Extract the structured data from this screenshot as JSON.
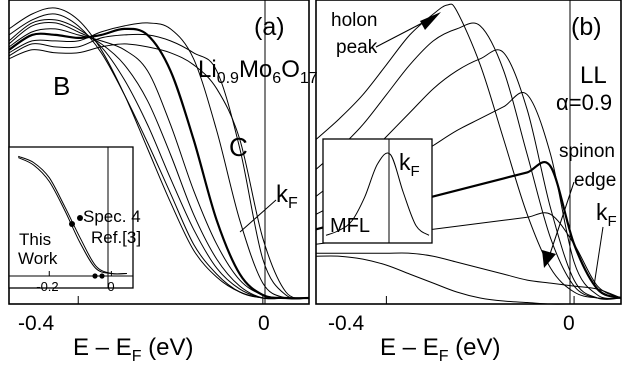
{
  "chart_data": [
    {
      "type": "line",
      "panel_label": "(a)",
      "xlabel_main": "E – E",
      "xlabel_sub": "F",
      "xlabel_unit": " (eV)",
      "xticks": [
        {
          "value": -0.4,
          "label": "-0.4"
        },
        {
          "value": 0,
          "label": "0"
        }
      ],
      "xlim": [
        -0.55,
        0.1
      ],
      "ylim": [
        0,
        1
      ],
      "compound": {
        "p1": "Li",
        "s1": "0.9",
        "p2": "Mo",
        "s2": "6",
        "p3": "O",
        "s3": "17"
      },
      "annotations": {
        "B": "B",
        "C": "C",
        "kF_main": "k",
        "kF_sub": "F"
      },
      "series": [
        {
          "x": [
            -0.55,
            -0.5,
            -0.45,
            -0.4,
            -0.35,
            -0.3,
            -0.25,
            -0.2,
            -0.15,
            -0.1,
            -0.05,
            0,
            0.05,
            0.1
          ],
          "y": [
            0.92,
            0.97,
            0.99,
            0.95,
            0.85,
            0.7,
            0.52,
            0.34,
            0.18,
            0.09,
            0.04,
            0.02,
            0.02,
            0.02
          ]
        },
        {
          "x": [
            -0.55,
            -0.5,
            -0.45,
            -0.4,
            -0.35,
            -0.3,
            -0.25,
            -0.2,
            -0.15,
            -0.1,
            -0.05,
            0,
            0.05,
            0.1
          ],
          "y": [
            0.9,
            0.95,
            0.97,
            0.93,
            0.84,
            0.7,
            0.54,
            0.37,
            0.2,
            0.1,
            0.04,
            0.02,
            0.02,
            0.02
          ]
        },
        {
          "x": [
            -0.55,
            -0.5,
            -0.45,
            -0.4,
            -0.35,
            -0.3,
            -0.25,
            -0.2,
            -0.15,
            -0.1,
            -0.05,
            0,
            0.05,
            0.1
          ],
          "y": [
            0.88,
            0.94,
            0.95,
            0.92,
            0.86,
            0.75,
            0.6,
            0.42,
            0.25,
            0.12,
            0.05,
            0.02,
            0.02,
            0.02
          ]
        },
        {
          "x": [
            -0.55,
            -0.5,
            -0.45,
            -0.4,
            -0.35,
            -0.3,
            -0.25,
            -0.2,
            -0.15,
            -0.1,
            -0.05,
            0,
            0.05,
            0.1
          ],
          "y": [
            0.87,
            0.93,
            0.94,
            0.91,
            0.87,
            0.8,
            0.68,
            0.5,
            0.3,
            0.15,
            0.06,
            0.02,
            0.02,
            0.02
          ]
        },
        {
          "x": [
            -0.55,
            -0.5,
            -0.45,
            -0.4,
            -0.35,
            -0.3,
            -0.25,
            -0.2,
            -0.15,
            -0.1,
            -0.05,
            0,
            0.05,
            0.1
          ],
          "y": [
            0.86,
            0.91,
            0.92,
            0.9,
            0.88,
            0.85,
            0.78,
            0.6,
            0.38,
            0.2,
            0.08,
            0.03,
            0.02,
            0.02
          ]
        },
        {
          "x": [
            -0.55,
            -0.5,
            -0.45,
            -0.4,
            -0.35,
            -0.3,
            -0.25,
            -0.2,
            -0.15,
            -0.1,
            -0.05,
            0,
            0.05,
            0.1
          ],
          "y": [
            0.85,
            0.9,
            0.9,
            0.89,
            0.9,
            0.92,
            0.9,
            0.78,
            0.55,
            0.28,
            0.1,
            0.03,
            0.02,
            0.02
          ]
        },
        {
          "x": [
            -0.55,
            -0.5,
            -0.45,
            -0.4,
            -0.35,
            -0.3,
            -0.25,
            -0.2,
            -0.15,
            -0.1,
            -0.05,
            0,
            0.05,
            0.1
          ],
          "y": [
            0.84,
            0.88,
            0.88,
            0.88,
            0.91,
            0.93,
            0.94,
            0.92,
            0.82,
            0.58,
            0.28,
            0.07,
            0.02,
            0.02
          ]
        },
        {
          "x": [
            -0.55,
            -0.5,
            -0.45,
            -0.4,
            -0.35,
            -0.3,
            -0.25,
            -0.2,
            -0.15,
            -0.1,
            -0.05,
            0,
            0.05,
            0.1
          ],
          "y": [
            0.83,
            0.87,
            0.86,
            0.86,
            0.89,
            0.9,
            0.9,
            0.88,
            0.84,
            0.78,
            0.52,
            0.15,
            0.03,
            0.02
          ]
        },
        {
          "x": [
            -0.55,
            -0.5,
            -0.45,
            -0.4,
            -0.35,
            -0.3,
            -0.25,
            -0.2,
            -0.15,
            -0.1,
            -0.05,
            0,
            0.05,
            0.1
          ],
          "y": [
            0.82,
            0.85,
            0.84,
            0.84,
            0.86,
            0.87,
            0.86,
            0.84,
            0.8,
            0.72,
            0.55,
            0.22,
            0.04,
            0.02
          ]
        }
      ],
      "inset": {
        "xticks": [
          {
            "value": -0.2,
            "label": "-0.2"
          },
          {
            "value": 0,
            "label": "0"
          }
        ],
        "labels": {
          "this_work": [
            "This",
            "Work"
          ],
          "spec": [
            "Spec. 4",
            "Ref.[3]"
          ]
        },
        "series": [
          {
            "name": "This Work",
            "x": [
              -0.3,
              -0.25,
              -0.2,
              -0.15,
              -0.1,
              -0.05,
              0,
              0.05
            ],
            "y": [
              0.95,
              0.9,
              0.78,
              0.55,
              0.3,
              0.08,
              0.02,
              0.02
            ]
          },
          {
            "name": "Spec. 4 Ref.[3]",
            "x": [
              -0.3,
              -0.25,
              -0.2,
              -0.15,
              -0.1,
              -0.05,
              0,
              0.05
            ],
            "y": [
              0.94,
              0.88,
              0.75,
              0.52,
              0.26,
              0.06,
              0.02,
              0.02
            ]
          }
        ]
      }
    },
    {
      "type": "line",
      "panel_label": "(b)",
      "xlabel_main": "E – E",
      "xlabel_sub": "F",
      "xlabel_unit": " (eV)",
      "xticks": [
        {
          "value": -0.4,
          "label": "-0.4"
        },
        {
          "value": 0,
          "label": "0"
        }
      ],
      "xlim": [
        -0.55,
        0.1
      ],
      "ylim": [
        0,
        1
      ],
      "annotations": {
        "holon": [
          "holon",
          "peak"
        ],
        "LL": "LL",
        "alpha": "α=0.9",
        "spinon": [
          "spinon",
          "edge"
        ],
        "kF_main": "k",
        "kF_sub": "F"
      },
      "series": [
        {
          "x": [
            -0.55,
            -0.5,
            -0.45,
            -0.4,
            -0.35,
            -0.3,
            -0.27,
            -0.25,
            -0.2,
            -0.15,
            -0.1,
            -0.05,
            0,
            0.05,
            0.1
          ],
          "y": [
            0.55,
            0.62,
            0.7,
            0.8,
            0.9,
            0.97,
            1.0,
            0.98,
            0.8,
            0.55,
            0.3,
            0.12,
            0.04,
            0.02,
            0.02
          ]
        },
        {
          "x": [
            -0.55,
            -0.5,
            -0.45,
            -0.4,
            -0.35,
            -0.3,
            -0.25,
            -0.2,
            -0.15,
            -0.1,
            -0.05,
            0,
            0.05,
            0.1
          ],
          "y": [
            0.45,
            0.52,
            0.6,
            0.7,
            0.8,
            0.88,
            0.92,
            0.93,
            0.78,
            0.5,
            0.22,
            0.06,
            0.02,
            0.02
          ]
        },
        {
          "x": [
            -0.55,
            -0.5,
            -0.45,
            -0.4,
            -0.35,
            -0.3,
            -0.25,
            -0.2,
            -0.15,
            -0.1,
            -0.05,
            0,
            0.05,
            0.1
          ],
          "y": [
            0.36,
            0.42,
            0.48,
            0.56,
            0.64,
            0.72,
            0.78,
            0.82,
            0.84,
            0.65,
            0.32,
            0.08,
            0.02,
            0.02
          ]
        },
        {
          "x": [
            -0.55,
            -0.5,
            -0.45,
            -0.4,
            -0.35,
            -0.3,
            -0.25,
            -0.2,
            -0.15,
            -0.1,
            -0.05,
            0,
            0.05,
            0.1
          ],
          "y": [
            0.3,
            0.34,
            0.38,
            0.43,
            0.48,
            0.53,
            0.58,
            0.62,
            0.66,
            0.7,
            0.5,
            0.14,
            0.03,
            0.02
          ]
        },
        {
          "x": [
            -0.55,
            -0.5,
            -0.45,
            -0.4,
            -0.35,
            -0.3,
            -0.25,
            -0.2,
            -0.15,
            -0.1,
            -0.05,
            0,
            0.05,
            0.1
          ],
          "y": [
            0.25,
            0.27,
            0.29,
            0.31,
            0.34,
            0.36,
            0.38,
            0.4,
            0.42,
            0.44,
            0.46,
            0.2,
            0.05,
            0.02
          ]
        },
        {
          "x": [
            -0.55,
            -0.5,
            -0.45,
            -0.4,
            -0.35,
            -0.3,
            -0.25,
            -0.2,
            -0.15,
            -0.1,
            -0.05,
            0,
            0.05,
            0.1
          ],
          "y": [
            0.2,
            0.21,
            0.22,
            0.23,
            0.24,
            0.25,
            0.26,
            0.27,
            0.28,
            0.29,
            0.3,
            0.2,
            0.06,
            0.02
          ]
        },
        {
          "x": [
            -0.55,
            -0.5,
            -0.45,
            -0.4,
            -0.35,
            -0.3,
            -0.25,
            -0.2,
            -0.15,
            -0.1,
            -0.05,
            0,
            0.05,
            0.1
          ],
          "y": [
            0.17,
            0.17,
            0.17,
            0.17,
            0.17,
            0.16,
            0.14,
            0.12,
            0.1,
            0.08,
            0.07,
            0.06,
            0.05,
            0.02
          ]
        },
        {
          "x": [
            -0.55,
            -0.5,
            -0.45,
            -0.4,
            -0.35,
            -0.3,
            -0.25,
            -0.2,
            -0.15,
            -0.1,
            -0.05,
            0,
            0.05,
            0.1
          ],
          "y": [
            0.16,
            0.16,
            0.15,
            0.13,
            0.1,
            0.07,
            0.04,
            0.02,
            0.01,
            0.005,
            0.0,
            0.0,
            0.0,
            0.0
          ]
        }
      ],
      "inset": {
        "labels": {
          "mfl": "MFL",
          "kF_main": "k",
          "kF_sub": "F"
        },
        "series": [
          {
            "name": "MFL",
            "x": [
              -0.3,
              -0.25,
              -0.2,
              -0.15,
              -0.1,
              -0.05,
              0,
              0.05,
              0.1
            ],
            "y": [
              0.05,
              0.1,
              0.2,
              0.45,
              0.8,
              0.9,
              0.5,
              0.15,
              0.05
            ]
          }
        ]
      }
    }
  ]
}
